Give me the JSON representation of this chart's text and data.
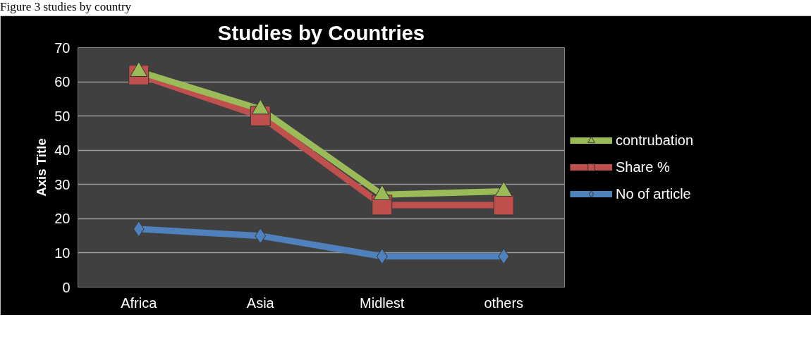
{
  "chart_data": {
    "type": "line",
    "title": "Studies by Countries",
    "ylabel": "Axis Title",
    "annotations": [
      "Figure 3 studies by country"
    ],
    "categories": [
      "Africa",
      "Asia",
      "Midlest",
      "others"
    ],
    "series": [
      {
        "name": "contrubation",
        "color": "#9bbb59",
        "marker": "triangle",
        "values": [
          63,
          52,
          27,
          28
        ]
      },
      {
        "name": "Share %",
        "color": "#c0504d",
        "marker": "square",
        "values": [
          62,
          50,
          24,
          24
        ]
      },
      {
        "name": "No of article",
        "color": "#4f81bd",
        "marker": "diamond",
        "values": [
          17,
          15,
          9,
          9
        ]
      }
    ],
    "ylim": [
      0,
      70
    ],
    "yticks": [
      0,
      10,
      20,
      30,
      40,
      50,
      60,
      70
    ],
    "grid": "y",
    "legend": "right",
    "line_style": "solid"
  }
}
